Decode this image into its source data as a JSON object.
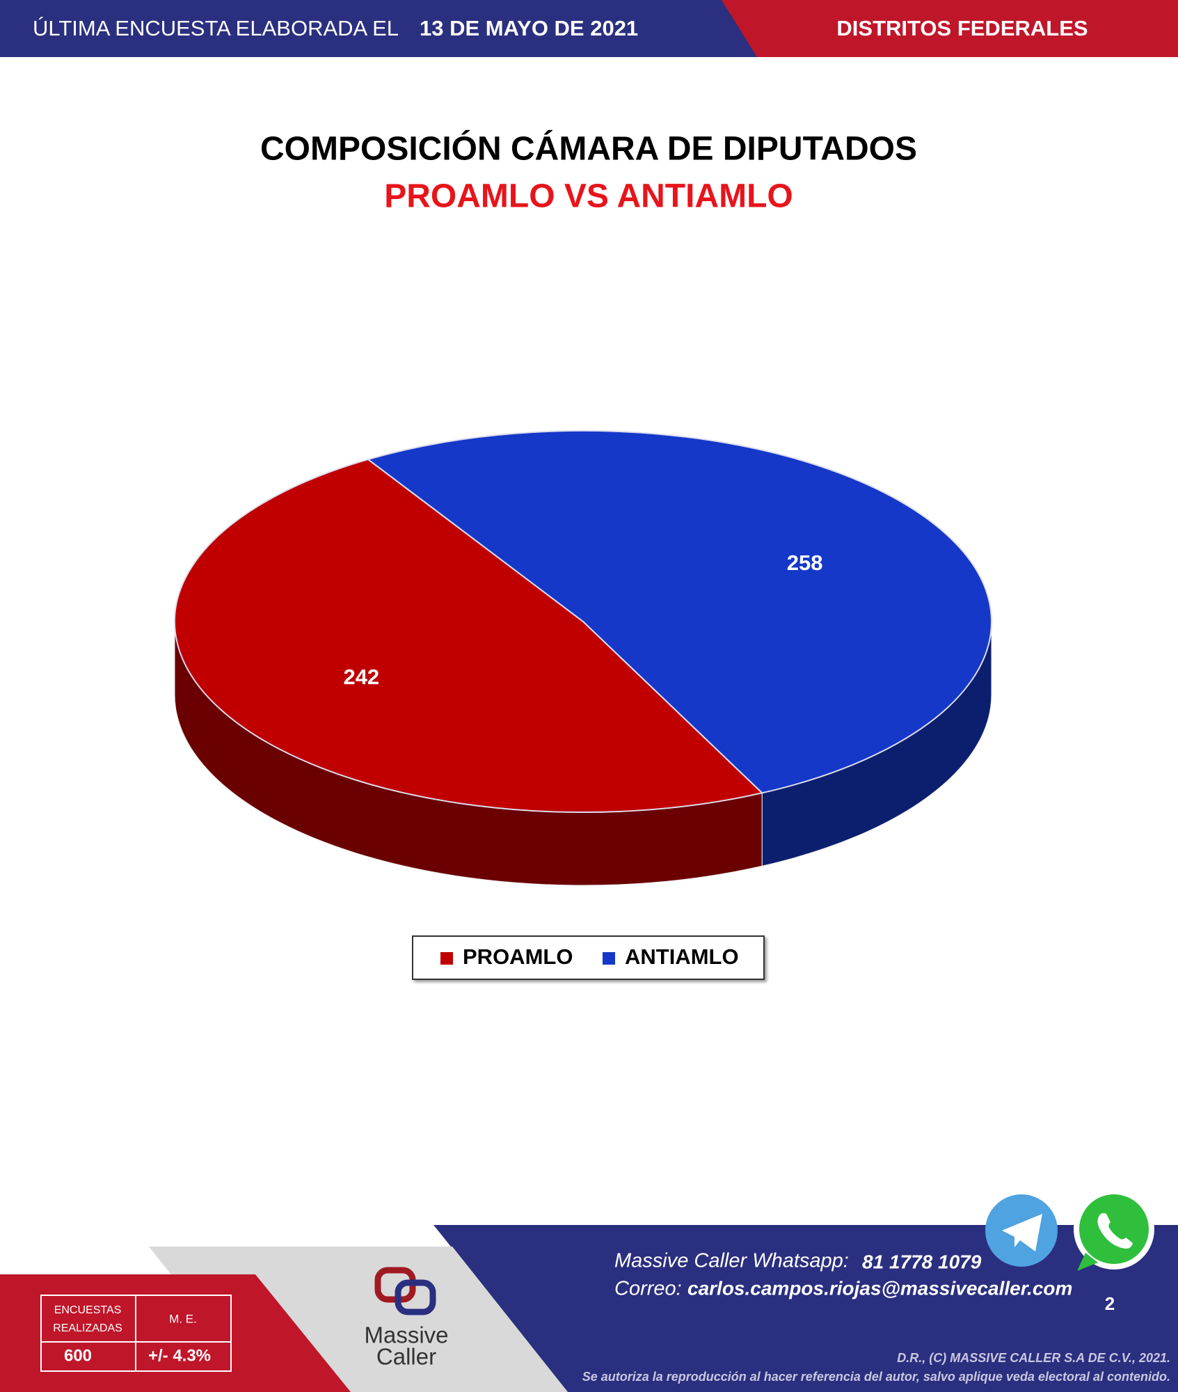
{
  "header": {
    "label": "ÚLTIMA ENCUESTA ELABORADA EL",
    "date": "13 DE MAYO DE 2021",
    "region": "DISTRITOS FEDERALES"
  },
  "chart_data": {
    "type": "pie",
    "title": "COMPOSICIÓN CÁMARA DE DIPUTADOS",
    "subtitle": "PROAMLO VS ANTIAMLO",
    "categories": [
      "PROAMLO",
      "ANTIAMLO"
    ],
    "values": [
      242,
      258
    ],
    "colors": [
      "#c00000",
      "#1538c9"
    ],
    "legend": "bottom"
  },
  "footer": {
    "survey_label": "ENCUESTAS REALIZADAS",
    "surveys": "600",
    "margin_label": "M. E.",
    "margin": "+/- 4.3%",
    "logo_top": "Massive",
    "logo_bottom": "Caller",
    "whatsapp_label": "Massive Caller Whatsapp:",
    "whatsapp": "81 1778 1079",
    "email_label": "Correo:",
    "email": "carlos.campos.riojas@massivecaller.com",
    "page": "2",
    "copyright": "D.R., (C) MASSIVE CALLER S.A DE C.V., 2021.",
    "notice": "Se autoriza la reproducción al hacer referencia del autor, salvo aplique veda electoral al contenido."
  }
}
